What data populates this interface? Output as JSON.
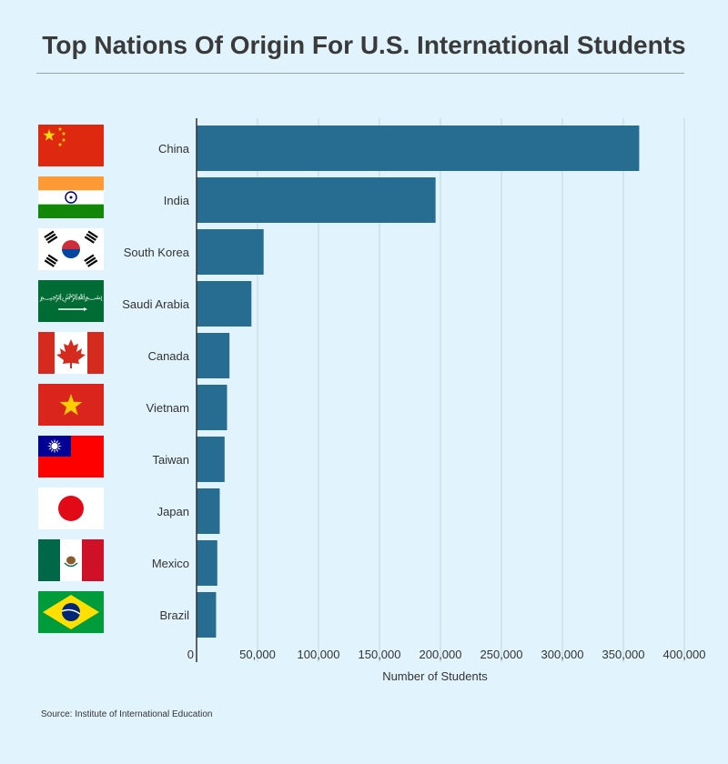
{
  "source": "Source: Institute of International Education",
  "colors": {
    "bar": "#276d92",
    "grid": "#c4d4dd",
    "axis": "#333333",
    "background": "#e1f3fc"
  },
  "chart_data": {
    "type": "bar",
    "orientation": "horizontal",
    "title": "Top Nations Of Origin For U.S. International Students",
    "xlabel": "Number of Students",
    "ylabel": "",
    "categories": [
      "China",
      "India",
      "South Korea",
      "Saudi Arabia",
      "Canada",
      "Vietnam",
      "Taiwan",
      "Japan",
      "Mexico",
      "Brazil"
    ],
    "values": [
      363000,
      196000,
      55000,
      45000,
      27000,
      25000,
      23000,
      19000,
      17000,
      16000
    ],
    "xlim": [
      0,
      400000
    ],
    "xticks": [
      0,
      50000,
      100000,
      150000,
      200000,
      250000,
      300000,
      350000,
      400000
    ],
    "xtick_labels": [
      "0",
      "50,000",
      "100,000",
      "150,000",
      "200,000",
      "250,000",
      "300,000",
      "350,000",
      "400,000"
    ],
    "grid": true,
    "flags": [
      "china-flag-icon",
      "india-flag-icon",
      "south-korea-flag-icon",
      "saudi-arabia-flag-icon",
      "canada-flag-icon",
      "vietnam-flag-icon",
      "taiwan-flag-icon",
      "japan-flag-icon",
      "mexico-flag-icon",
      "brazil-flag-icon"
    ]
  }
}
